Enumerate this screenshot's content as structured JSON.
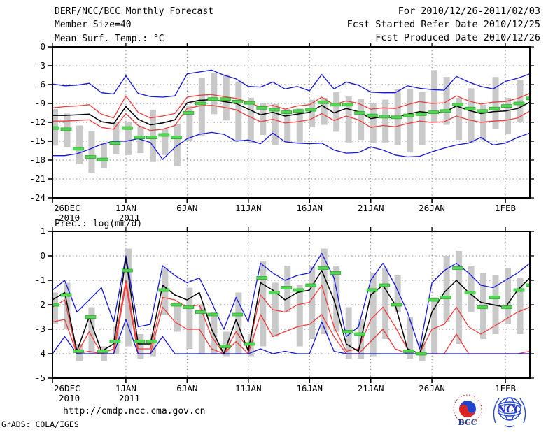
{
  "header": {
    "title": "DERF/NCC/BCC Monthly Forecast",
    "member_size": "Member Size=40",
    "for_period": "For 2010/12/26-2011/02/03",
    "fcst_started": "Fcst Started Refer Date 2010/12/25",
    "fcst_produced": "Fcst Produced Date 2010/12/26"
  },
  "footer": {
    "url": "http://cmdp.ncc.cma.gov.cn",
    "credit": "GrADS: COLA/IGES",
    "bcc_logo_text": "BCC",
    "ncc_logo_text": "NCC"
  },
  "colors": {
    "blue_line": "#1515dd",
    "red_line": "#f03c3c",
    "black_line": "#000000",
    "green_dash": "#55d555",
    "green_dash_edge": "#16a816",
    "spread_bar": "#c9c9c9",
    "grid": "#8a8a8a",
    "frame": "#000000"
  },
  "chart_data": [
    {
      "type": "line",
      "title": "Mean Surf. Temp.: °C",
      "n_points": 40,
      "grid": true,
      "grid_style": "dotted",
      "legend": "none",
      "ylim": [
        -24,
        0
      ],
      "yticks": [
        0,
        -3,
        -6,
        -9,
        -12,
        -15,
        -18,
        -21,
        -24
      ],
      "xticks": [
        {
          "i": 0,
          "label": "26DEC",
          "year": "2010"
        },
        {
          "i": 6,
          "label": "1JAN",
          "year": "2011"
        },
        {
          "i": 11,
          "label": "6JAN"
        },
        {
          "i": 16,
          "label": "11JAN"
        },
        {
          "i": 21,
          "label": "16JAN"
        },
        {
          "i": 26,
          "label": "21JAN"
        },
        {
          "i": 31,
          "label": "26JAN"
        },
        {
          "i": 37,
          "label": "1FEB"
        }
      ],
      "series": [
        {
          "name": "blue-upper-bound",
          "color": "#1515dd",
          "style": "line",
          "values": [
            -5.9,
            -6.2,
            -6.1,
            -5.8,
            -7.3,
            -7.5,
            -4.6,
            -7.4,
            -7.9,
            -8.0,
            -7.8,
            -4.3,
            -4.0,
            -3.7,
            -4.5,
            -5.1,
            -6.3,
            -6.4,
            -5.6,
            -6.7,
            -6.3,
            -7.0,
            -4.4,
            -6.7,
            -5.6,
            -6.1,
            -7.2,
            -7.3,
            -7.3,
            -6.2,
            -6.6,
            -6.8,
            -6.9,
            -4.7,
            -5.6,
            -6.3,
            -6.7,
            -5.5,
            -5.0,
            -4.3
          ]
        },
        {
          "name": "red-upper-bound",
          "color": "#f03c3c",
          "style": "line",
          "values": [
            -9.7,
            -9.5,
            -9.4,
            -9.2,
            -10.7,
            -11.3,
            -7.8,
            -10.4,
            -11.3,
            -11.0,
            -10.6,
            -8.0,
            -7.7,
            -7.6,
            -7.9,
            -8.2,
            -8.8,
            -9.6,
            -9.3,
            -9.9,
            -9.4,
            -9.2,
            -8.0,
            -9.2,
            -8.6,
            -9.0,
            -9.9,
            -9.7,
            -9.8,
            -9.2,
            -8.7,
            -9.0,
            -8.9,
            -7.8,
            -8.6,
            -9.1,
            -8.8,
            -8.7,
            -8.2,
            -7.4
          ]
        },
        {
          "name": "ensemble-mean-black",
          "color": "#000000",
          "style": "line",
          "values": [
            -10.9,
            -10.9,
            -10.8,
            -10.7,
            -11.9,
            -12.2,
            -9.5,
            -11.5,
            -12.4,
            -12.1,
            -11.6,
            -8.9,
            -8.5,
            -8.4,
            -8.7,
            -9.0,
            -9.9,
            -10.8,
            -10.4,
            -11.0,
            -10.7,
            -10.4,
            -9.3,
            -10.5,
            -9.8,
            -10.3,
            -11.4,
            -11.1,
            -11.3,
            -10.7,
            -10.3,
            -10.5,
            -10.4,
            -9.4,
            -10.1,
            -10.6,
            -10.3,
            -10.2,
            -9.8,
            -8.8
          ]
        },
        {
          "name": "red-lower-bound",
          "color": "#f03c3c",
          "style": "line",
          "values": [
            -11.8,
            -11.8,
            -11.7,
            -11.6,
            -12.8,
            -13.1,
            -10.6,
            -12.5,
            -13.3,
            -13.1,
            -12.5,
            -9.8,
            -9.4,
            -9.3,
            -9.6,
            -10.0,
            -11.0,
            -11.9,
            -11.5,
            -12.1,
            -11.9,
            -11.6,
            -10.6,
            -11.7,
            -11.0,
            -11.6,
            -12.8,
            -12.5,
            -12.7,
            -12.2,
            -11.8,
            -12.0,
            -11.9,
            -11.0,
            -11.6,
            -12.0,
            -11.8,
            -11.7,
            -11.3,
            -10.2
          ]
        },
        {
          "name": "blue-lower-bound",
          "color": "#1515dd",
          "style": "line",
          "values": [
            -17.3,
            -17.3,
            -17.0,
            -16.3,
            -15.5,
            -15.0,
            -15.0,
            -14.6,
            -15.2,
            -17.9,
            -16.0,
            -14.6,
            -13.9,
            -13.6,
            -13.9,
            -15.0,
            -14.8,
            -15.4,
            -13.7,
            -15.1,
            -15.3,
            -15.4,
            -15.3,
            -16.4,
            -16.9,
            -16.8,
            -15.9,
            -16.4,
            -17.2,
            -17.5,
            -17.4,
            -16.7,
            -16.1,
            -15.6,
            -15.3,
            -14.4,
            -15.6,
            -15.3,
            -14.4,
            -13.7
          ]
        }
      ],
      "median_dashes": {
        "name": "ensemble-median-green",
        "values": [
          -12.9,
          -13.1,
          -16.2,
          -17.5,
          -17.9,
          -15.3,
          -12.9,
          -14.4,
          -14.4,
          -14.0,
          -14.4,
          -10.5,
          -9.0,
          -8.3,
          -8.3,
          -8.7,
          -8.9,
          -9.7,
          -10.0,
          -10.4,
          -10.2,
          -10.0,
          -8.8,
          -9.2,
          -9.2,
          -10.5,
          -10.9,
          -11.1,
          -11.2,
          -10.9,
          -10.7,
          -10.4,
          -10.2,
          -9.2,
          -9.8,
          -10.2,
          -9.8,
          -9.4,
          -9.0,
          -8.2
        ]
      },
      "member_spread_bars": {
        "hi": [
          -9.9,
          -10.6,
          -12.5,
          -13.4,
          -15.4,
          -12.0,
          -12.0,
          -12.6,
          -10.0,
          -13.0,
          -12.2,
          -9.4,
          -4.9,
          -4.1,
          -4.4,
          -5.5,
          -8.1,
          -8.9,
          -9.1,
          -9.9,
          -9.8,
          -8.4,
          -8.1,
          -7.2,
          -7.9,
          -8.3,
          -9.0,
          -8.4,
          -6.7,
          -6.7,
          -7.2,
          -3.7,
          -4.8,
          -8.1,
          -6.6,
          -9.2,
          -4.8,
          -8.1,
          -5.3,
          -7.0
        ],
        "lo": [
          -15.7,
          -15.9,
          -18.6,
          -20.0,
          -19.3,
          -17.1,
          -17.2,
          -16.9,
          -18.3,
          -17.2,
          -19.0,
          -15.0,
          -14.1,
          -10.7,
          -11.7,
          -15.0,
          -15.3,
          -14.0,
          -15.6,
          -15.1,
          -15.2,
          -12.8,
          -12.4,
          -13.5,
          -15.2,
          -14.8,
          -15.3,
          -15.2,
          -15.6,
          -16.8,
          -15.6,
          -11.9,
          -12.4,
          -14.8,
          -15.2,
          -14.8,
          -13.0,
          -13.9,
          -11.9,
          -12.8
        ]
      }
    },
    {
      "type": "line",
      "title": "Prec.: log(mm/d)",
      "n_points": 40,
      "grid": true,
      "grid_style": "dotted",
      "legend": "none",
      "ylim": [
        -5,
        1
      ],
      "yticks": [
        1,
        0,
        -1,
        -2,
        -3,
        -4,
        -5
      ],
      "xticks": [
        {
          "i": 0,
          "label": "26DEC",
          "year": "2010"
        },
        {
          "i": 6,
          "label": "1JAN",
          "year": "2011"
        },
        {
          "i": 11,
          "label": "6JAN"
        },
        {
          "i": 16,
          "label": "11JAN"
        },
        {
          "i": 21,
          "label": "16JAN"
        },
        {
          "i": 26,
          "label": "21JAN"
        },
        {
          "i": 31,
          "label": "26JAN"
        },
        {
          "i": 37,
          "label": "1FEB"
        }
      ],
      "series": [
        {
          "name": "blue-upper-bound",
          "color": "#1515dd",
          "style": "line",
          "values": [
            -1.4,
            -1.0,
            -2.3,
            -1.8,
            -1.3,
            -2.7,
            0.0,
            -2.9,
            -2.8,
            -0.4,
            -0.8,
            -1.1,
            -0.9,
            -1.9,
            -3.0,
            -1.7,
            -2.7,
            -0.3,
            -0.7,
            -1.0,
            -0.8,
            -0.7,
            0.1,
            -0.9,
            -3.3,
            -2.9,
            -1.0,
            -0.3,
            -1.2,
            -2.3,
            -3.8,
            -1.1,
            -0.6,
            -0.3,
            -0.7,
            -1.2,
            -1.3,
            -1.0,
            -0.7,
            -0.3
          ]
        },
        {
          "name": "red-upper-bound",
          "color": "#f03c3c",
          "style": "line",
          "values": [
            -2.1,
            -1.8,
            -4.0,
            -3.1,
            -4.0,
            -3.8,
            -1.0,
            -3.8,
            -3.8,
            -1.7,
            -1.8,
            -2.1,
            -2.0,
            -3.3,
            -4.0,
            -3.1,
            -3.8,
            -1.6,
            -2.2,
            -2.3,
            -2.0,
            -1.9,
            -1.2,
            -2.9,
            -3.9,
            -3.8,
            -2.6,
            -2.1,
            -2.9,
            -3.8,
            -4.0,
            -3.0,
            -2.8,
            -2.1,
            -2.9,
            -3.2,
            -2.9,
            -2.6,
            -2.3,
            -2.1
          ]
        },
        {
          "name": "ensemble-mean-black",
          "color": "#000000",
          "style": "line",
          "values": [
            -1.8,
            -1.5,
            -3.9,
            -2.5,
            -3.9,
            -3.6,
            -0.1,
            -3.6,
            -3.6,
            -1.2,
            -1.6,
            -1.8,
            -1.5,
            -3.0,
            -4.0,
            -2.6,
            -3.9,
            -1.1,
            -1.4,
            -1.8,
            -1.5,
            -1.4,
            -0.6,
            -1.8,
            -3.6,
            -3.9,
            -1.6,
            -1.2,
            -2.0,
            -3.8,
            -4.0,
            -2.3,
            -1.5,
            -1.0,
            -1.5,
            -1.9,
            -2.0,
            -2.1,
            -1.4,
            -0.9
          ]
        },
        {
          "name": "red-lower-bound",
          "color": "#f03c3c",
          "style": "line",
          "values": [
            -2.7,
            -2.6,
            -4.0,
            -3.9,
            -4.0,
            -4.0,
            -1.2,
            -4.0,
            -4.0,
            -2.1,
            -2.7,
            -3.0,
            -3.0,
            -3.8,
            -4.0,
            -3.5,
            -4.0,
            -2.4,
            -3.3,
            -3.1,
            -2.9,
            -2.8,
            -2.4,
            -3.3,
            -4.0,
            -4.0,
            -3.5,
            -3.0,
            -3.8,
            -4.0,
            -4.0,
            -4.0,
            -4.0,
            -3.2,
            -4.0,
            -4.0,
            -4.0,
            -4.0,
            -4.0,
            -3.9
          ]
        },
        {
          "name": "blue-lower-bound",
          "color": "#1515dd",
          "style": "line",
          "values": [
            -4.0,
            -3.3,
            -4.0,
            -4.0,
            -4.0,
            -4.0,
            -2.6,
            -4.0,
            -4.0,
            -3.3,
            -4.0,
            -4.0,
            -4.0,
            -4.0,
            -4.0,
            -4.0,
            -4.0,
            -3.8,
            -4.0,
            -3.9,
            -4.0,
            -4.0,
            -2.7,
            -3.9,
            -4.0,
            -4.0,
            -4.0,
            -4.0,
            -4.0,
            -4.0,
            -4.0,
            -4.0,
            -4.0,
            -4.0,
            -4.0,
            -4.0,
            -4.0,
            -4.0,
            -4.0,
            -4.0
          ]
        }
      ],
      "median_dashes": {
        "name": "ensemble-median-green",
        "values": [
          -2.0,
          -1.6,
          -3.9,
          -2.5,
          -3.9,
          -3.5,
          -0.6,
          -3.5,
          -3.5,
          -1.4,
          -2.0,
          -2.1,
          -2.3,
          -2.4,
          -3.7,
          -2.4,
          -3.6,
          -0.9,
          -1.5,
          -1.3,
          -1.4,
          -1.2,
          -0.5,
          -0.7,
          -3.1,
          -3.2,
          -1.4,
          -1.2,
          -2.0,
          -3.9,
          -4.0,
          -1.8,
          -1.7,
          -0.5,
          -1.5,
          -2.1,
          -1.7,
          -2.1,
          -1.4,
          -1.2
        ]
      },
      "member_spread_bars": {
        "hi": [
          -1.5,
          -1.1,
          -3.6,
          -2.1,
          -3.7,
          -2.9,
          0.3,
          -3.2,
          -3.2,
          -0.5,
          -1.9,
          -1.3,
          -2.0,
          -2.3,
          -3.1,
          -1.5,
          -3.2,
          -0.2,
          -1.1,
          -0.4,
          -1.2,
          -0.4,
          0.3,
          -0.4,
          -2.1,
          -2.6,
          -0.7,
          -0.5,
          -0.8,
          -2.5,
          -3.5,
          -1.7,
          0.0,
          0.2,
          -0.4,
          -0.7,
          -0.8,
          -0.5,
          -0.9,
          -0.8
        ],
        "lo": [
          -2.8,
          -3.0,
          -4.3,
          -4.0,
          -4.3,
          -4.0,
          -3.7,
          -4.2,
          -4.1,
          -2.4,
          -3.1,
          -3.8,
          -4.0,
          -4.0,
          -4.1,
          -4.0,
          -4.1,
          -3.7,
          -3.3,
          -2.3,
          -3.7,
          -3.4,
          -3.2,
          -3.1,
          -4.2,
          -4.2,
          -4.1,
          -3.4,
          -2.3,
          -4.2,
          -4.3,
          -4.0,
          -2.7,
          -3.6,
          -2.3,
          -3.4,
          -3.2,
          -2.8,
          -3.2,
          -2.5
        ]
      }
    }
  ]
}
